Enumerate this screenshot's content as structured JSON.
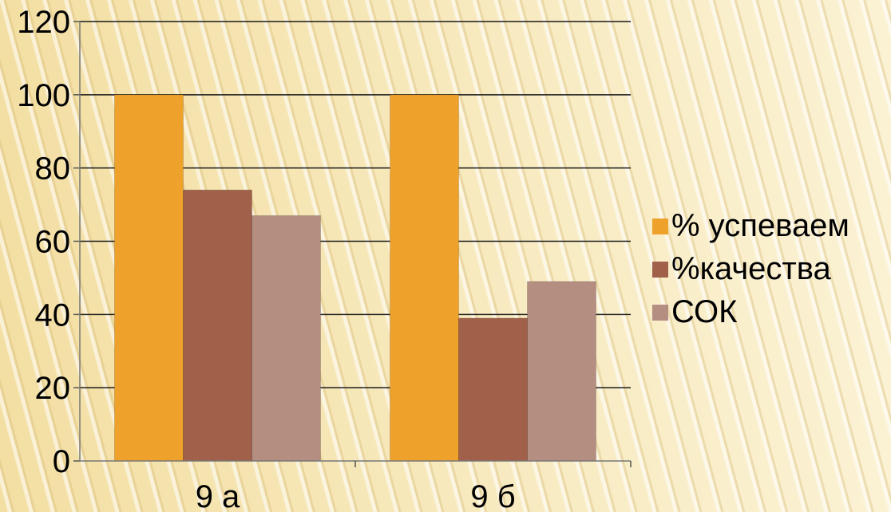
{
  "chart_data": {
    "type": "bar",
    "categories": [
      "9 а",
      "9 б"
    ],
    "series": [
      {
        "name": "% успеваем",
        "values": [
          100,
          100
        ],
        "color": "#eea22c"
      },
      {
        "name": "%качества",
        "values": [
          74,
          39
        ],
        "color": "#a0604a"
      },
      {
        "name": "СОК",
        "values": [
          67,
          49
        ],
        "color": "#b58e82"
      }
    ],
    "ylim": [
      0,
      120
    ],
    "yticks": [
      0,
      20,
      40,
      60,
      80,
      100,
      120
    ],
    "grid": true,
    "legend": "right"
  }
}
